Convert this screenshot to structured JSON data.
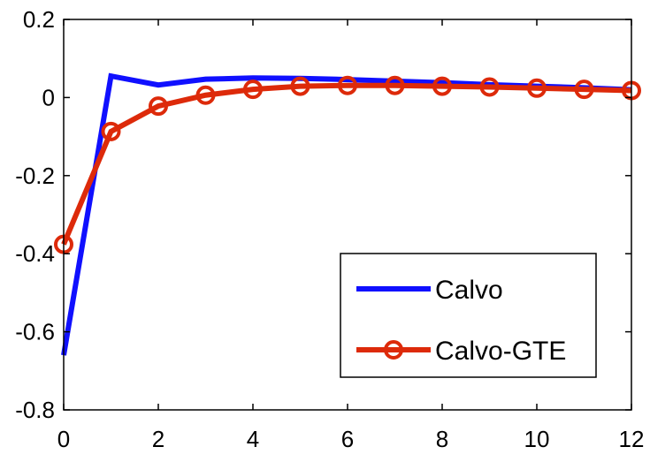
{
  "chart_data": {
    "type": "line",
    "title": "",
    "xlabel": "",
    "ylabel": "",
    "xlim": [
      0,
      12
    ],
    "ylim": [
      -0.8,
      0.2
    ],
    "xticks": [
      0,
      2,
      4,
      6,
      8,
      10,
      12
    ],
    "xtick_labels": [
      "0",
      "2",
      "4",
      "6",
      "8",
      "10",
      "12"
    ],
    "yticks": [
      0.2,
      0,
      -0.2,
      -0.4,
      -0.6,
      -0.8
    ],
    "ytick_labels": [
      "0.2",
      "0",
      "-0.2",
      "-0.4",
      "-0.6",
      "-0.8"
    ],
    "grid": false,
    "legend_position": "bottom-right",
    "x": [
      0,
      1,
      2,
      3,
      4,
      5,
      6,
      7,
      8,
      9,
      10,
      11,
      12
    ],
    "series": [
      {
        "name": "Calvo",
        "color": "#1010ff",
        "marker": "none",
        "values": [
          -0.66,
          0.055,
          0.032,
          0.047,
          0.05,
          0.049,
          0.046,
          0.042,
          0.038,
          0.033,
          0.029,
          0.025,
          0.02
        ]
      },
      {
        "name": "Calvo-GTE",
        "color": "#dd2a0a",
        "marker": "circle",
        "values": [
          -0.376,
          -0.087,
          -0.022,
          0.006,
          0.021,
          0.029,
          0.031,
          0.031,
          0.029,
          0.027,
          0.024,
          0.021,
          0.018
        ]
      }
    ]
  }
}
